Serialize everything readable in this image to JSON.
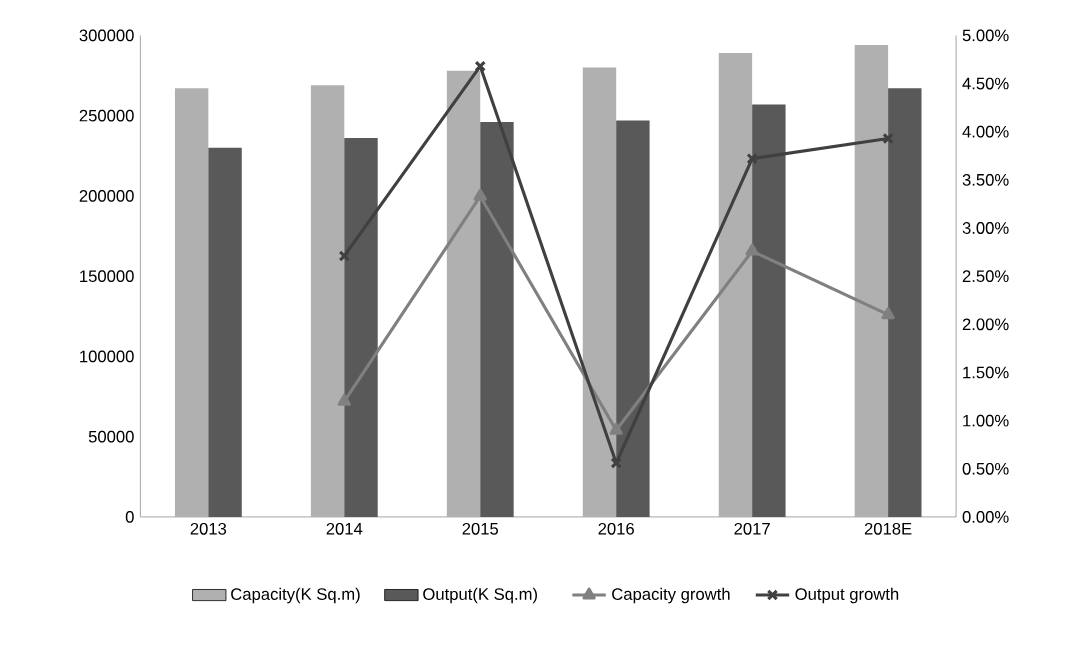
{
  "chart_data": {
    "type": "bar",
    "categories": [
      "2013",
      "2014",
      "2015",
      "2016",
      "2017",
      "2018E"
    ],
    "series": [
      {
        "name": "Capacity(K Sq.m)",
        "color": "#b0b0b0",
        "values": [
          267000,
          269000,
          278000,
          280000,
          289000,
          294000
        ]
      },
      {
        "name": "Output(K Sq.m)",
        "color": "#595959",
        "values": [
          230000,
          236000,
          246000,
          247000,
          257000,
          267000
        ]
      },
      {
        "name": "Capacity growth",
        "type": "line",
        "axis": "y2",
        "marker": "triangle",
        "color": "#808080",
        "values": [
          null,
          1.2,
          3.33,
          0.9,
          2.76,
          2.1
        ]
      },
      {
        "name": "Output growth",
        "type": "line",
        "axis": "y2",
        "marker": "cross",
        "color": "#404040",
        "values": [
          null,
          2.71,
          4.68,
          0.56,
          3.72,
          3.93
        ]
      }
    ],
    "ylim": [
      0,
      300000
    ],
    "yticks": [
      0,
      50000,
      100000,
      150000,
      200000,
      250000,
      300000
    ],
    "y2lim": [
      0,
      5
    ],
    "y2ticks": [
      {
        "value": 0,
        "label": "0.00%"
      },
      {
        "value": 0.5,
        "label": "0.50%"
      },
      {
        "value": 1,
        "label": "1.00%"
      },
      {
        "value": 1.5,
        "label": "1.50%"
      },
      {
        "value": 2,
        "label": "2.00%"
      },
      {
        "value": 2.5,
        "label": "2.50%"
      },
      {
        "value": 3,
        "label": "3.00%"
      },
      {
        "value": 3.5,
        "label": "3.50%"
      },
      {
        "value": 4,
        "label": "4.00%"
      },
      {
        "value": 4.5,
        "label": "4.50%"
      },
      {
        "value": 5,
        "label": "5.00%"
      }
    ],
    "grid": false,
    "legend": "bottom"
  }
}
